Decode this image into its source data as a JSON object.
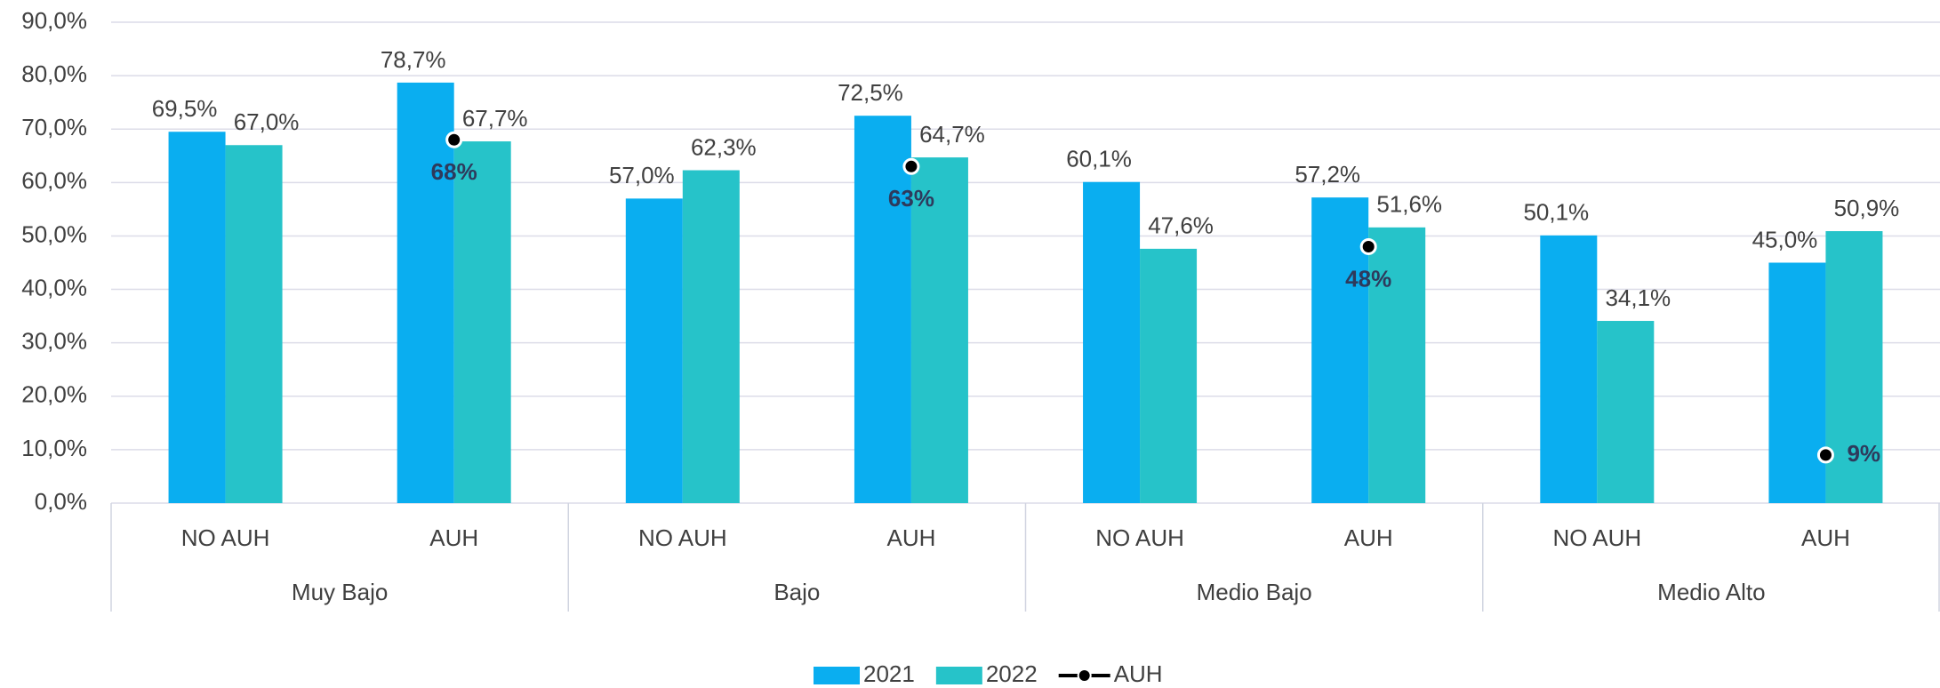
{
  "chart_data": {
    "type": "bar",
    "categories": [
      "NO AUH",
      "AUH",
      "NO AUH",
      "AUH",
      "NO AUH",
      "AUH",
      "NO AUH",
      "AUH"
    ],
    "groups": [
      "Muy Bajo",
      "Bajo",
      "Medio Bajo",
      "Medio Alto"
    ],
    "series": [
      {
        "name": "2021",
        "color": "#0aaef0",
        "values": [
          69.5,
          78.7,
          57.0,
          72.5,
          60.1,
          57.2,
          50.1,
          45.0
        ],
        "value_labels": [
          "69,5%",
          "78,7%",
          "57,0%",
          "72,5%",
          "60,1%",
          "57,2%",
          "50,1%",
          "45,0%"
        ]
      },
      {
        "name": "2022",
        "color": "#26c3c9",
        "values": [
          67.0,
          67.7,
          62.3,
          64.7,
          47.6,
          51.6,
          34.1,
          50.9
        ],
        "value_labels": [
          "67,0%",
          "67,7%",
          "62,3%",
          "64,7%",
          "47,6%",
          "51,6%",
          "34,1%",
          "50,9%"
        ]
      },
      {
        "name": "AUH",
        "type": "line",
        "color": "#000000",
        "values": [
          null,
          68,
          null,
          63,
          null,
          48,
          null,
          9
        ],
        "value_labels": [
          null,
          "68%",
          null,
          "63%",
          null,
          "48%",
          null,
          "9%"
        ]
      }
    ],
    "ylim": [
      0,
      90
    ],
    "yticks": [
      {
        "value": 0,
        "label": "0,0%"
      },
      {
        "value": 10,
        "label": "10,0%"
      },
      {
        "value": 20,
        "label": "20,0%"
      },
      {
        "value": 30,
        "label": "30,0%"
      },
      {
        "value": 40,
        "label": "40,0%"
      },
      {
        "value": 50,
        "label": "50,0%"
      },
      {
        "value": 60,
        "label": "60,0%"
      },
      {
        "value": 70,
        "label": "70,0%"
      },
      {
        "value": 80,
        "label": "80,0%"
      },
      {
        "value": 90,
        "label": "90,0%"
      }
    ],
    "grid": true,
    "legend": "bottom"
  }
}
